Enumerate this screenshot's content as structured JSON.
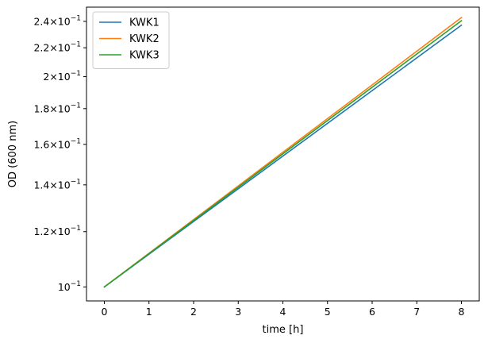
{
  "chart_data": {
    "type": "line",
    "title": "",
    "xlabel": "time [h]",
    "ylabel": "OD (600 nm)",
    "xlim": [
      -0.4,
      8.4
    ],
    "ylim": [
      0.0955,
      0.2515
    ],
    "yscale": "log",
    "grid": false,
    "legend_position": "top-left",
    "x_ticks": [
      0,
      1,
      2,
      3,
      4,
      5,
      6,
      7,
      8
    ],
    "x_tick_labels": [
      "0",
      "1",
      "2",
      "3",
      "4",
      "5",
      "6",
      "7",
      "8"
    ],
    "y_ticks": [
      {
        "value": 0.1,
        "mantissa": "",
        "base": "10",
        "exponent": "−1"
      },
      {
        "value": 0.12,
        "mantissa": "1.2",
        "base": "10",
        "exponent": "−1"
      },
      {
        "value": 0.14,
        "mantissa": "1.4",
        "base": "10",
        "exponent": "−1"
      },
      {
        "value": 0.16,
        "mantissa": "1.6",
        "base": "10",
        "exponent": "−1"
      },
      {
        "value": 0.18,
        "mantissa": "1.8",
        "base": "10",
        "exponent": "−1"
      },
      {
        "value": 0.2,
        "mantissa": "2",
        "base": "10",
        "exponent": "−1"
      },
      {
        "value": 0.22,
        "mantissa": "2.2",
        "base": "10",
        "exponent": "−1"
      },
      {
        "value": 0.24,
        "mantissa": "2.4",
        "base": "10",
        "exponent": "−1"
      }
    ],
    "x": [
      0,
      8
    ],
    "series": [
      {
        "name": "KWK1",
        "color": "#1f77b4",
        "values": [
          0.1,
          0.237
        ]
      },
      {
        "name": "KWK2",
        "color": "#ff7f0e",
        "values": [
          0.1,
          0.243
        ]
      },
      {
        "name": "KWK3",
        "color": "#2ca02c",
        "values": [
          0.1,
          0.2405
        ]
      }
    ]
  }
}
